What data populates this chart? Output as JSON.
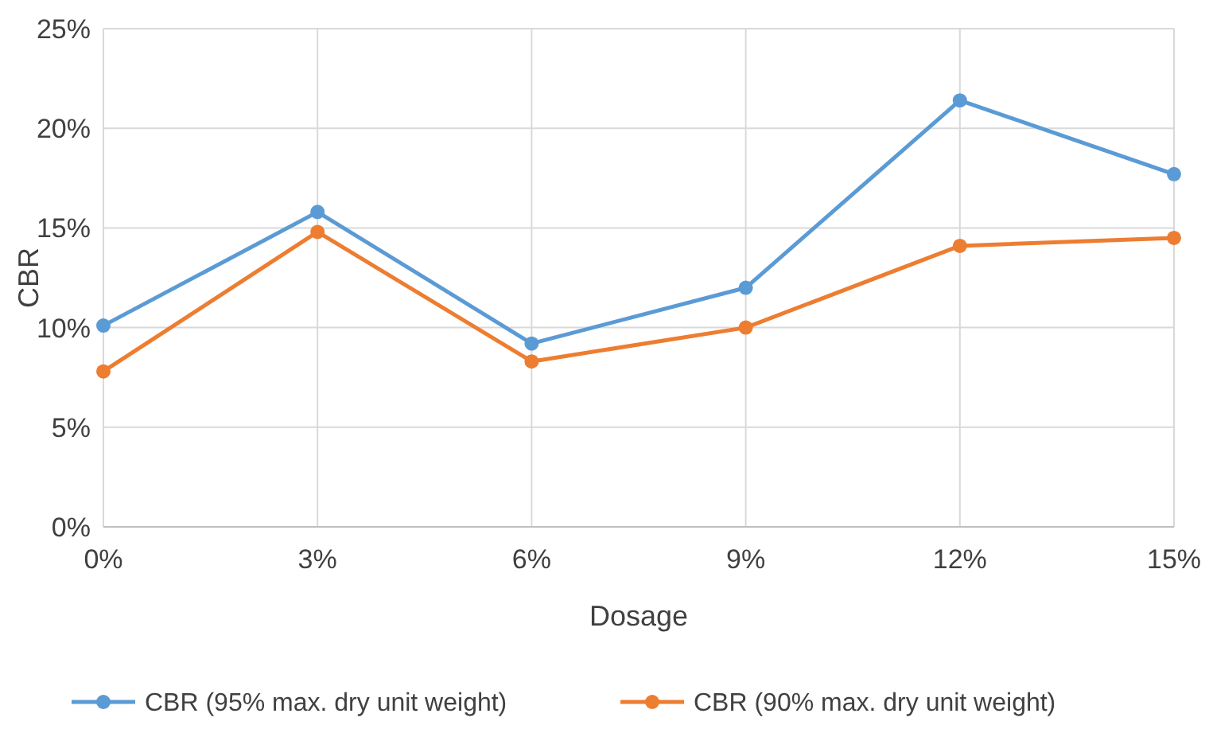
{
  "chart_data": {
    "type": "line",
    "xlabel": "Dosage",
    "ylabel": "CBR",
    "categories": [
      "0%",
      "3%",
      "6%",
      "9%",
      "12%",
      "15%"
    ],
    "series": [
      {
        "name": "CBR (95% max. dry unit weight)",
        "color": "#5b9bd5",
        "values": [
          10.1,
          15.8,
          9.2,
          12.0,
          21.4,
          17.7
        ]
      },
      {
        "name": "CBR (90% max. dry unit weight)",
        "color": "#ed7d31",
        "values": [
          7.8,
          14.8,
          8.3,
          10.0,
          14.1,
          14.5
        ]
      }
    ],
    "ylim": [
      0,
      25
    ],
    "yticks": [
      {
        "value": 0,
        "label": "0%"
      },
      {
        "value": 5,
        "label": "5%"
      },
      {
        "value": 10,
        "label": "10%"
      },
      {
        "value": 15,
        "label": "15%"
      },
      {
        "value": 20,
        "label": "20%"
      },
      {
        "value": 25,
        "label": "25%"
      }
    ],
    "grid": true,
    "legend": "bottom",
    "marker": "circle",
    "line_style": "solid"
  }
}
